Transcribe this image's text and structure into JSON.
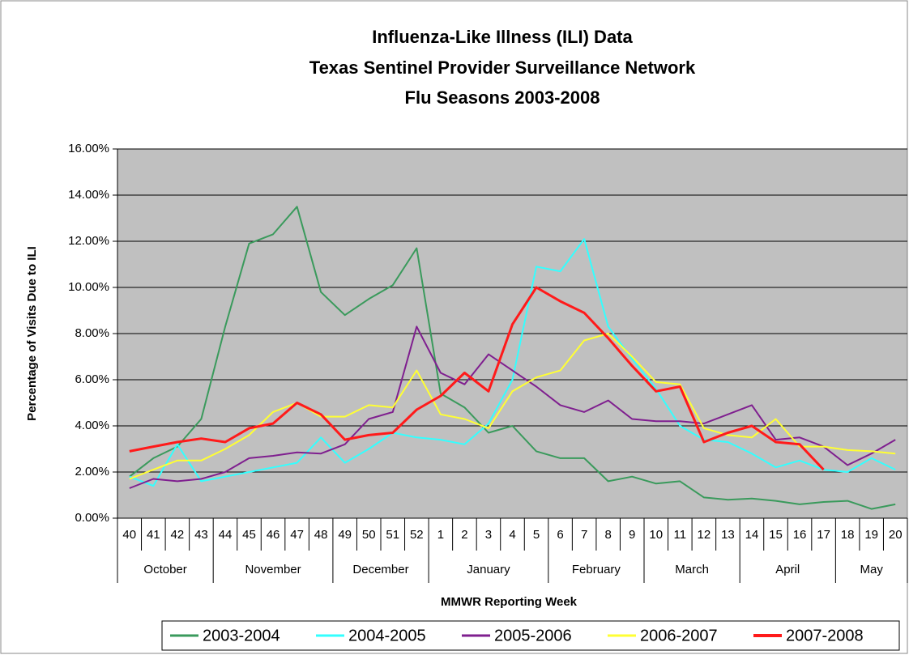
{
  "chart_data": {
    "type": "line",
    "title": "Influenza-Like Illness (ILI) Data",
    "subtitle": [
      "Texas Sentinel Provider Surveillance Network",
      "Flu Seasons 2003-2008"
    ],
    "x_label": "MMWR Reporting Week",
    "y_label": "Percentage of Visits Due to ILI",
    "categories": [
      "40",
      "41",
      "42",
      "43",
      "44",
      "45",
      "46",
      "47",
      "48",
      "49",
      "50",
      "51",
      "52",
      "1",
      "2",
      "3",
      "4",
      "5",
      "6",
      "7",
      "8",
      "9",
      "10",
      "11",
      "12",
      "13",
      "14",
      "15",
      "16",
      "17",
      "18",
      "19",
      "20"
    ],
    "groups": [
      {
        "name": "October",
        "count": 4
      },
      {
        "name": "November",
        "count": 5
      },
      {
        "name": "December",
        "count": 4
      },
      {
        "name": "January",
        "count": 5
      },
      {
        "name": "February",
        "count": 4
      },
      {
        "name": "March",
        "count": 4
      },
      {
        "name": "April",
        "count": 4
      },
      {
        "name": "May",
        "count": 3
      }
    ],
    "ylim": [
      0,
      16
    ],
    "yticks": [
      {
        "value": 0,
        "label": "0.00%"
      },
      {
        "value": 2,
        "label": "2.00%"
      },
      {
        "value": 4,
        "label": "4.00%"
      },
      {
        "value": 6,
        "label": "6.00%"
      },
      {
        "value": 8,
        "label": "8.00%"
      },
      {
        "value": 10,
        "label": "10.00%"
      },
      {
        "value": 12,
        "label": "12.00%"
      },
      {
        "value": 14,
        "label": "14.00%"
      },
      {
        "value": 16,
        "label": "16.00%"
      }
    ],
    "grid": true,
    "legend": "bottom",
    "series": [
      {
        "name": "2003-2004",
        "color": "#3a9a5c",
        "values": [
          1.8,
          2.6,
          3.1,
          4.3,
          8.3,
          11.9,
          12.3,
          13.5,
          9.8,
          8.8,
          9.5,
          10.1,
          11.7,
          5.4,
          4.8,
          3.7,
          4.0,
          2.9,
          2.6,
          2.6,
          1.6,
          1.8,
          1.5,
          1.6,
          0.9,
          0.8,
          0.85,
          0.75,
          0.6,
          0.7,
          0.75,
          0.4,
          0.6
        ]
      },
      {
        "name": "2004-2005",
        "color": "#33ffff",
        "values": [
          1.8,
          1.4,
          3.2,
          1.6,
          1.8,
          2.0,
          2.2,
          2.4,
          3.5,
          2.4,
          3.0,
          3.7,
          3.5,
          3.4,
          3.2,
          4.1,
          6.0,
          10.9,
          10.7,
          12.1,
          8.3,
          6.9,
          5.6,
          4.0,
          3.4,
          3.3,
          2.8,
          2.2,
          2.5,
          2.1,
          2.0,
          2.6,
          2.1
        ]
      },
      {
        "name": "2005-2006",
        "color": "#7f1f8f",
        "values": [
          1.3,
          1.7,
          1.6,
          1.7,
          2.0,
          2.6,
          2.7,
          2.85,
          2.8,
          3.2,
          4.3,
          4.6,
          8.3,
          6.3,
          5.8,
          7.1,
          6.4,
          5.7,
          4.9,
          4.6,
          5.1,
          4.3,
          4.2,
          4.2,
          4.1,
          4.5,
          4.9,
          3.4,
          3.5,
          3.1,
          2.3,
          2.8,
          3.4
        ]
      },
      {
        "name": "2006-2007",
        "color": "#ffff33",
        "values": [
          1.7,
          2.1,
          2.5,
          2.5,
          3.0,
          3.6,
          4.6,
          5.0,
          4.4,
          4.4,
          4.9,
          4.8,
          6.4,
          4.5,
          4.3,
          3.9,
          5.5,
          6.1,
          6.4,
          7.7,
          8.0,
          7.0,
          5.9,
          5.8,
          3.9,
          3.6,
          3.5,
          4.3,
          3.1,
          3.1,
          2.95,
          2.9,
          2.8
        ]
      },
      {
        "name": "2007-2008",
        "color": "#ff1a1a",
        "width": 3,
        "values": [
          2.9,
          3.1,
          3.3,
          3.45,
          3.3,
          3.9,
          4.1,
          5.0,
          4.5,
          3.4,
          3.6,
          3.7,
          4.7,
          5.3,
          6.3,
          5.5,
          8.4,
          10.0,
          9.4,
          8.9,
          7.8,
          6.6,
          5.5,
          5.7,
          3.3,
          3.7,
          4.0,
          3.3,
          3.2,
          2.1,
          null,
          null,
          null
        ]
      }
    ]
  }
}
